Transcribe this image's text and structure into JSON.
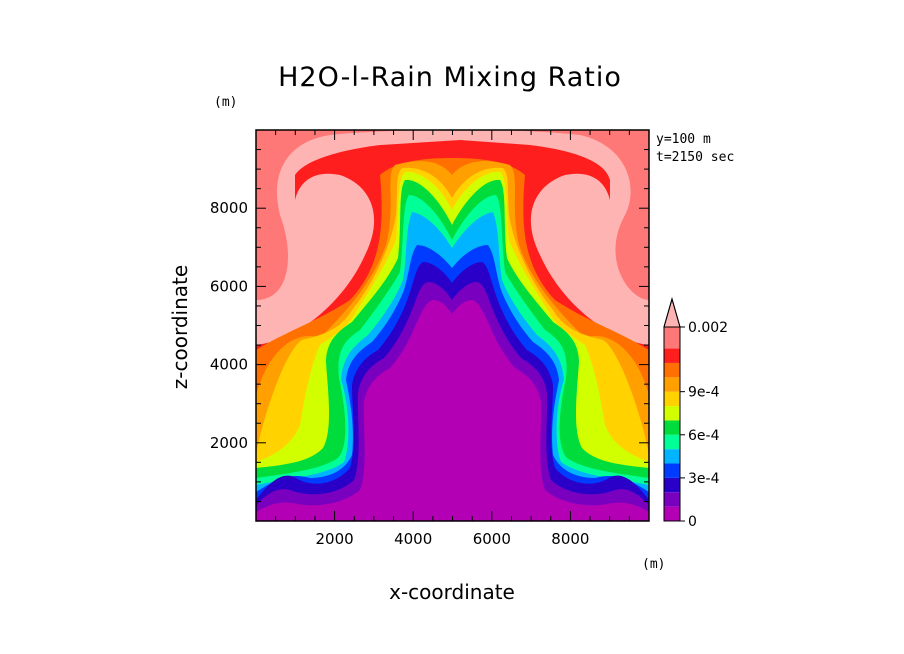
{
  "chart_data": {
    "type": "heatmap",
    "title": "H2O-l-Rain Mixing Ratio",
    "xlabel": "x-coordinate",
    "ylabel": "z-coordinate",
    "x_unit": "(m)",
    "y_unit": "(m)",
    "xlim": [
      0,
      10000
    ],
    "ylim": [
      0,
      10000
    ],
    "xticks": [
      2000,
      4000,
      6000,
      8000
    ],
    "yticks": [
      2000,
      4000,
      6000,
      8000
    ],
    "annotations": [
      "y=100 m",
      "t=2150 sec"
    ],
    "colorbar": {
      "levels": [
        0,
        0.0001,
        0.0002,
        0.0003,
        0.0004,
        0.0005,
        0.0006,
        0.0007,
        0.0008,
        0.0009,
        0.001,
        0.0015,
        0.002
      ],
      "labels": [
        "0",
        "3e-4",
        "6e-4",
        "9e-4",
        "0.002"
      ],
      "label_values": [
        0,
        0.0003,
        0.0006,
        0.0009,
        0.002
      ],
      "colors": [
        "#b400b4",
        "#7a00c0",
        "#2a00c8",
        "#003cff",
        "#00b4ff",
        "#00ff96",
        "#00dc3c",
        "#d2ff00",
        "#ffd200",
        "#ffa000",
        "#ff7000",
        "#ff1e1e",
        "#ff7878",
        "#ffb4b4"
      ],
      "extend": "max"
    }
  }
}
